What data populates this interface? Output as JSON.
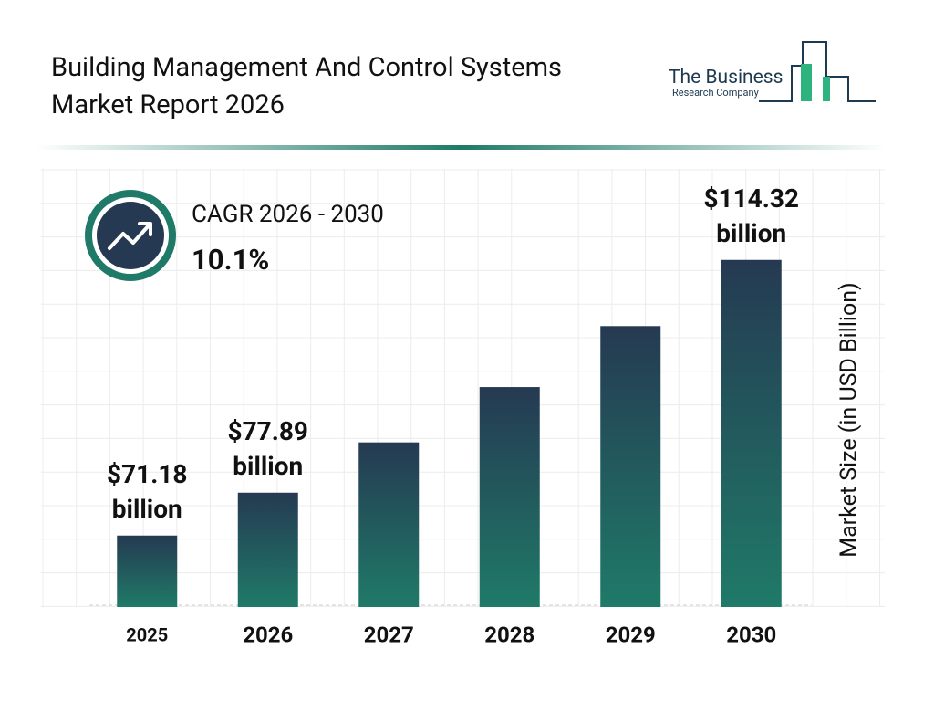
{
  "chart_data": {
    "type": "bar",
    "title": "Building Management And Control Systems Market Report 2026",
    "brand": {
      "line1": "The Business",
      "line2": "Research Company"
    },
    "cagr": {
      "label": "CAGR 2026 - 2030",
      "value": "10.1%"
    },
    "y_axis_label": "Market Size (in USD Billion)",
    "categories": [
      "2025",
      "2026",
      "2027",
      "2028",
      "2029",
      "2030"
    ],
    "values": [
      71.18,
      77.89,
      85.76,
      94.42,
      103.96,
      114.32
    ],
    "value_labels": [
      "$71.18 billion",
      "$77.89 billion",
      null,
      null,
      null,
      "$114.32 billion"
    ],
    "ylim": [
      60,
      116
    ],
    "colors": [
      "#253a52",
      "#1f7a68"
    ]
  }
}
